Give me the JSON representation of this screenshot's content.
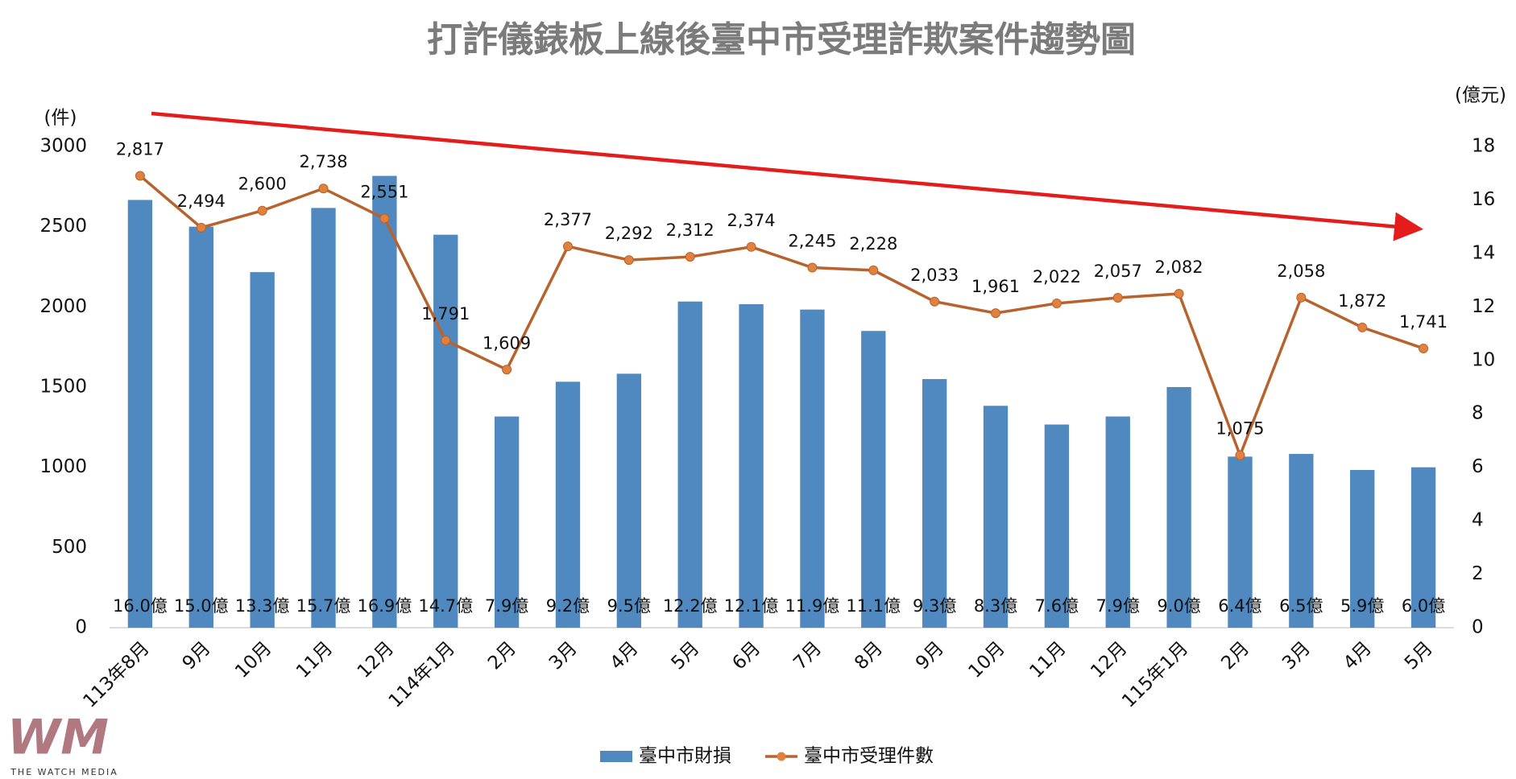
{
  "chart_data": {
    "type": "bar-line",
    "title": "打詐儀錶板上線後臺中市受理詐欺案件趨勢圖",
    "y_label": "(件)",
    "y2_label": "(億元)",
    "categories": [
      "113年8月",
      "9月",
      "10月",
      "11月",
      "12月",
      "114年1月",
      "2月",
      "3月",
      "4月",
      "5月",
      "6月",
      "7月",
      "8月",
      "9月",
      "10月",
      "11月",
      "12月",
      "115年1月",
      "2月",
      "3月",
      "4月",
      "5月"
    ],
    "series": [
      {
        "name": "臺中市財損",
        "type": "bar",
        "axis": "y2",
        "color": "#5089bf",
        "values": [
          16.0,
          15.0,
          13.3,
          15.7,
          16.9,
          14.7,
          7.9,
          9.2,
          9.5,
          12.2,
          12.1,
          11.9,
          11.1,
          9.3,
          8.3,
          7.6,
          7.9,
          9.0,
          6.4,
          6.5,
          5.9,
          6.0
        ],
        "value_labels": [
          "16.0億",
          "15.0億",
          "13.3億",
          "15.7億",
          "16.9億",
          "14.7億",
          "7.9億",
          "9.2億",
          "9.5億",
          "12.2億",
          "12.1億",
          "11.9億",
          "11.1億",
          "9.3億",
          "8.3億",
          "7.6億",
          "7.9億",
          "9.0億",
          "6.4億",
          "6.5億",
          "5.9億",
          "6.0億"
        ]
      },
      {
        "name": "臺中市受理件數",
        "type": "line",
        "color": "#b8622d",
        "marker_color": "#e0813f",
        "values": [
          2817,
          2494,
          2600,
          2738,
          2551,
          1791,
          1609,
          2377,
          2292,
          2312,
          2374,
          2245,
          2228,
          2033,
          1961,
          2022,
          2057,
          2082,
          1075,
          2058,
          1872,
          1741
        ],
        "value_labels": [
          "2,817",
          "2,494",
          "2,600",
          "2,738",
          "2,551",
          "1,791",
          "1,609",
          "2,377",
          "2,292",
          "2,312",
          "2,374",
          "2,245",
          "2,228",
          "2,033",
          "1,961",
          "2,022",
          "2,057",
          "2,082",
          "1,075",
          "2,058",
          "1,872",
          "1,741"
        ]
      }
    ],
    "ylim": [
      0,
      3000
    ],
    "yticks": [
      0,
      500,
      1000,
      1500,
      2000,
      2500,
      3000
    ],
    "y2lim": [
      0,
      18
    ],
    "y2ticks": [
      0,
      2,
      4,
      6,
      8,
      10,
      12,
      14,
      16,
      18
    ],
    "legend": "bottom"
  },
  "logo": {
    "mark": "WM",
    "text": "THE WATCH MEDIA"
  }
}
